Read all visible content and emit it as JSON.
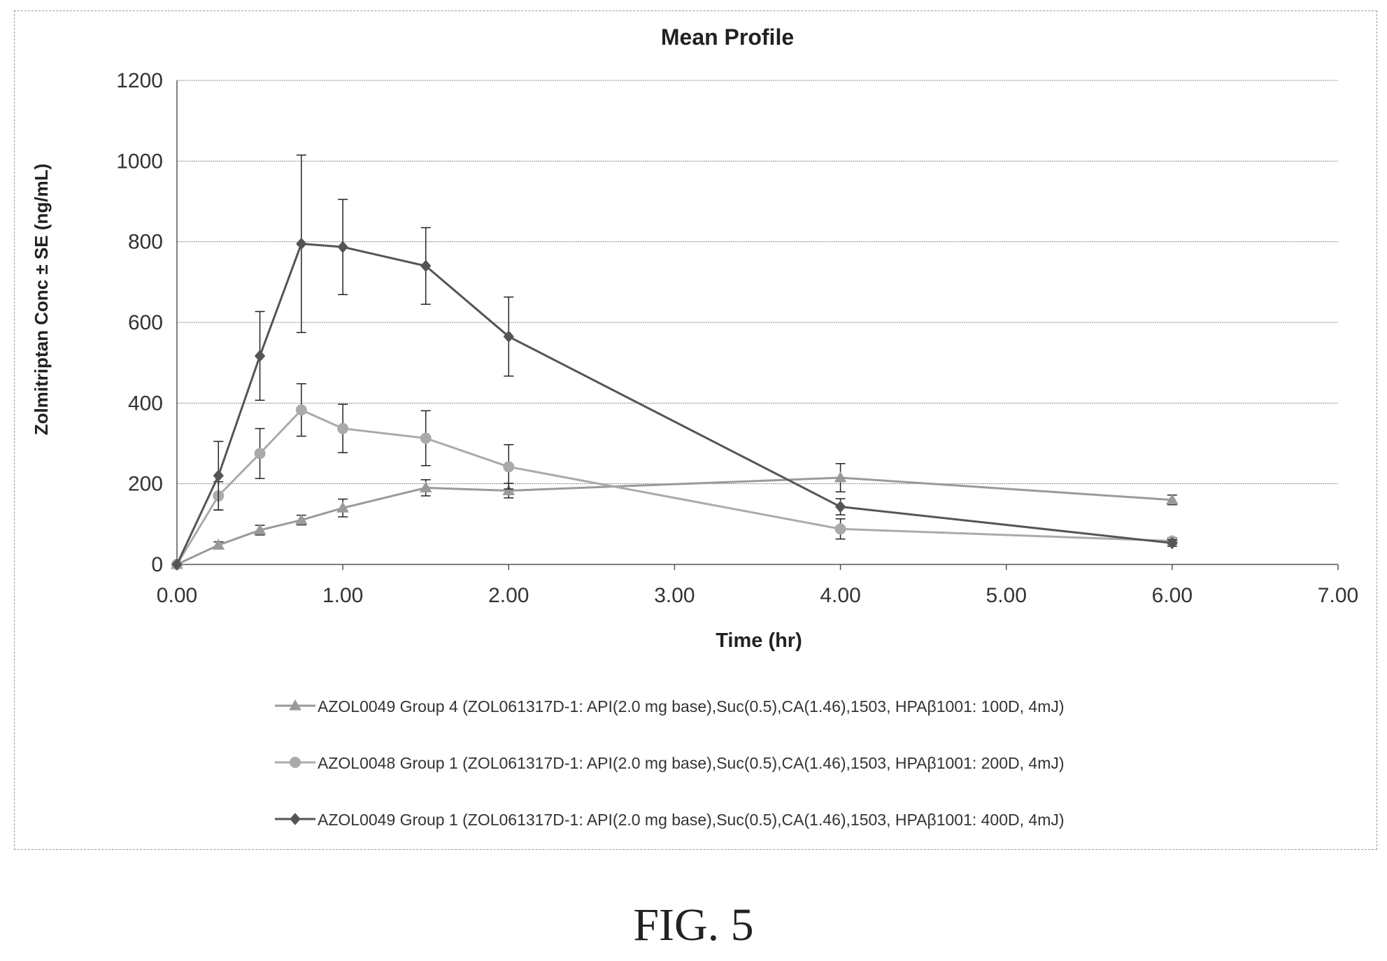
{
  "figure_label": "FIG. 5",
  "chart_data": {
    "type": "line",
    "title": "Mean Profile",
    "xlabel": "Time (hr)",
    "ylabel": "Zolmitriptan Conc ± SE (ng/mL)",
    "xlim": [
      0,
      7
    ],
    "ylim": [
      0,
      1200
    ],
    "x_ticks": [
      "0.00",
      "1.00",
      "2.00",
      "3.00",
      "4.00",
      "5.00",
      "6.00",
      "7.00"
    ],
    "y_ticks": [
      "0",
      "200",
      "400",
      "600",
      "800",
      "1000",
      "1200"
    ],
    "x_tick_values": [
      0,
      1,
      2,
      3,
      4,
      5,
      6,
      7
    ],
    "y_tick_values": [
      0,
      200,
      400,
      600,
      800,
      1000,
      1200
    ],
    "grid": "horizontal",
    "legend_position": "bottom",
    "x": [
      0,
      0.25,
      0.5,
      0.75,
      1.0,
      1.5,
      2.0,
      4.0,
      6.0
    ],
    "series": [
      {
        "name": "AZOL0049 Group 4 (ZOL061317D-1: API(2.0 mg base),Suc(0.5),CA(1.46),1503, HPAβ1001: 100D, 4mJ)",
        "marker": "triangle",
        "color": "#9a9a9a",
        "values": [
          0,
          48,
          85,
          110,
          140,
          190,
          183,
          215,
          160
        ],
        "se": [
          0,
          8,
          12,
          12,
          22,
          20,
          18,
          35,
          12
        ]
      },
      {
        "name": "AZOL0048 Group 1 (ZOL061317D-1: API(2.0 mg base),Suc(0.5),CA(1.46),1503, HPAβ1001: 200D, 4mJ)",
        "marker": "circle",
        "color": "#aaaaaa",
        "values": [
          0,
          170,
          275,
          383,
          337,
          313,
          242,
          88,
          58
        ],
        "se": [
          0,
          35,
          62,
          65,
          60,
          68,
          55,
          25,
          8
        ]
      },
      {
        "name": "AZOL0049 Group 1 (ZOL061317D-1: API(2.0 mg base),Suc(0.5),CA(1.46),1503, HPAβ1001: 400D, 4mJ)",
        "marker": "diamond",
        "color": "#555555",
        "values": [
          0,
          220,
          517,
          795,
          787,
          740,
          565,
          143,
          53
        ],
        "se": [
          0,
          85,
          110,
          220,
          118,
          95,
          98,
          20,
          8
        ]
      }
    ]
  }
}
